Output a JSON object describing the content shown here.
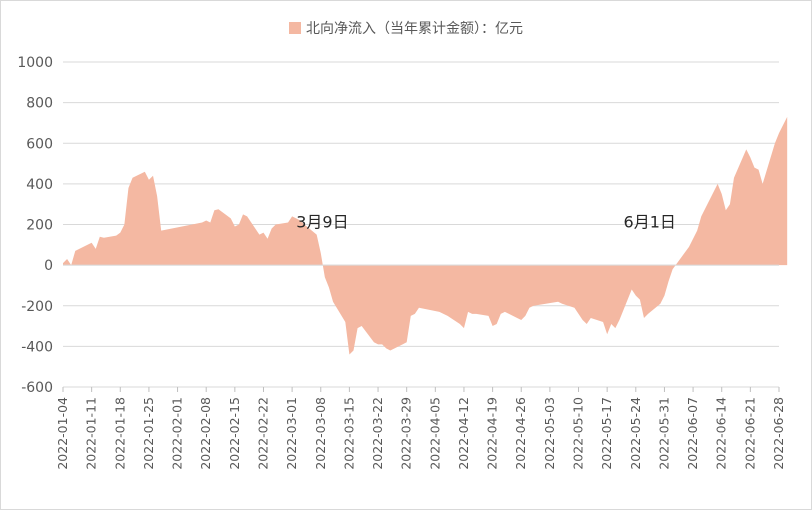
{
  "chart_data": {
    "type": "area",
    "title": "北向净流入（当年累计金额）：亿元",
    "series": [
      {
        "name": "北向净流入（当年累计金额）：亿元",
        "color": "#f4b8a2",
        "points": [
          [
            "2022-01-04",
            10
          ],
          [
            "2022-01-05",
            30
          ],
          [
            "2022-01-06",
            0
          ],
          [
            "2022-01-07",
            70
          ],
          [
            "2022-01-10",
            100
          ],
          [
            "2022-01-11",
            110
          ],
          [
            "2022-01-12",
            80
          ],
          [
            "2022-01-13",
            140
          ],
          [
            "2022-01-14",
            135
          ],
          [
            "2022-01-17",
            145
          ],
          [
            "2022-01-18",
            160
          ],
          [
            "2022-01-19",
            200
          ],
          [
            "2022-01-20",
            380
          ],
          [
            "2022-01-21",
            430
          ],
          [
            "2022-01-24",
            460
          ],
          [
            "2022-01-25",
            420
          ],
          [
            "2022-01-26",
            440
          ],
          [
            "2022-01-27",
            340
          ],
          [
            "2022-01-28",
            170
          ],
          [
            "2022-02-07",
            210
          ],
          [
            "2022-02-08",
            220
          ],
          [
            "2022-02-09",
            210
          ],
          [
            "2022-02-10",
            270
          ],
          [
            "2022-02-11",
            275
          ],
          [
            "2022-02-14",
            230
          ],
          [
            "2022-02-15",
            190
          ],
          [
            "2022-02-16",
            200
          ],
          [
            "2022-02-17",
            250
          ],
          [
            "2022-02-18",
            240
          ],
          [
            "2022-02-21",
            150
          ],
          [
            "2022-02-22",
            160
          ],
          [
            "2022-02-23",
            130
          ],
          [
            "2022-02-24",
            180
          ],
          [
            "2022-02-25",
            200
          ],
          [
            "2022-02-28",
            210
          ],
          [
            "2022-03-01",
            240
          ],
          [
            "2022-03-02",
            230
          ],
          [
            "2022-03-03",
            220
          ],
          [
            "2022-03-04",
            200
          ],
          [
            "2022-03-07",
            150
          ],
          [
            "2022-03-08",
            60
          ],
          [
            "2022-03-09",
            -60
          ],
          [
            "2022-03-10",
            -110
          ],
          [
            "2022-03-11",
            -180
          ],
          [
            "2022-03-14",
            -280
          ],
          [
            "2022-03-15",
            -440
          ],
          [
            "2022-03-16",
            -420
          ],
          [
            "2022-03-17",
            -310
          ],
          [
            "2022-03-18",
            -300
          ],
          [
            "2022-03-21",
            -380
          ],
          [
            "2022-03-22",
            -390
          ],
          [
            "2022-03-23",
            -390
          ],
          [
            "2022-03-24",
            -410
          ],
          [
            "2022-03-25",
            -420
          ],
          [
            "2022-03-28",
            -390
          ],
          [
            "2022-03-29",
            -380
          ],
          [
            "2022-03-30",
            -250
          ],
          [
            "2022-03-31",
            -240
          ],
          [
            "2022-04-01",
            -210
          ],
          [
            "2022-04-06",
            -230
          ],
          [
            "2022-04-07",
            -240
          ],
          [
            "2022-04-08",
            -250
          ],
          [
            "2022-04-11",
            -290
          ],
          [
            "2022-04-12",
            -310
          ],
          [
            "2022-04-13",
            -230
          ],
          [
            "2022-04-14",
            -240
          ],
          [
            "2022-04-15",
            -240
          ],
          [
            "2022-04-18",
            -250
          ],
          [
            "2022-04-19",
            -300
          ],
          [
            "2022-04-20",
            -290
          ],
          [
            "2022-04-21",
            -240
          ],
          [
            "2022-04-22",
            -230
          ],
          [
            "2022-04-25",
            -260
          ],
          [
            "2022-04-26",
            -270
          ],
          [
            "2022-04-27",
            -250
          ],
          [
            "2022-04-28",
            -210
          ],
          [
            "2022-04-29",
            -200
          ],
          [
            "2022-05-05",
            -180
          ],
          [
            "2022-05-06",
            -190
          ],
          [
            "2022-05-09",
            -210
          ],
          [
            "2022-05-10",
            -240
          ],
          [
            "2022-05-11",
            -270
          ],
          [
            "2022-05-12",
            -290
          ],
          [
            "2022-05-13",
            -260
          ],
          [
            "2022-05-16",
            -280
          ],
          [
            "2022-05-17",
            -340
          ],
          [
            "2022-05-18",
            -290
          ],
          [
            "2022-05-19",
            -310
          ],
          [
            "2022-05-20",
            -270
          ],
          [
            "2022-05-23",
            -120
          ],
          [
            "2022-05-24",
            -150
          ],
          [
            "2022-05-25",
            -170
          ],
          [
            "2022-05-26",
            -260
          ],
          [
            "2022-05-27",
            -240
          ],
          [
            "2022-05-30",
            -190
          ],
          [
            "2022-05-31",
            -150
          ],
          [
            "2022-06-01",
            -80
          ],
          [
            "2022-06-02",
            -20
          ],
          [
            "2022-06-06",
            90
          ],
          [
            "2022-06-07",
            130
          ],
          [
            "2022-06-08",
            170
          ],
          [
            "2022-06-09",
            240
          ],
          [
            "2022-06-10",
            280
          ],
          [
            "2022-06-13",
            400
          ],
          [
            "2022-06-14",
            350
          ],
          [
            "2022-06-15",
            270
          ],
          [
            "2022-06-16",
            300
          ],
          [
            "2022-06-17",
            430
          ],
          [
            "2022-06-20",
            570
          ],
          [
            "2022-06-21",
            530
          ],
          [
            "2022-06-22",
            480
          ],
          [
            "2022-06-23",
            470
          ],
          [
            "2022-06-24",
            400
          ],
          [
            "2022-06-27",
            600
          ],
          [
            "2022-06-28",
            650
          ],
          [
            "2022-06-29",
            690
          ],
          [
            "2022-06-30",
            730
          ]
        ]
      }
    ],
    "ylim": [
      -600,
      1000
    ],
    "yticks": [
      "1000",
      "800",
      "600",
      "400",
      "200",
      "0",
      "-200",
      "-400",
      "-600"
    ],
    "xticks": [
      "2022-01-04",
      "2022-01-11",
      "2022-01-18",
      "2022-01-25",
      "2022-02-01",
      "2022-02-08",
      "2022-02-15",
      "2022-02-22",
      "2022-03-01",
      "2022-03-08",
      "2022-03-15",
      "2022-03-22",
      "2022-03-29",
      "2022-04-05",
      "2022-04-12",
      "2022-04-19",
      "2022-04-26",
      "2022-05-03",
      "2022-05-10",
      "2022-05-17",
      "2022-05-24",
      "2022-05-31",
      "2022-06-07",
      "2022-06-14",
      "2022-06-21",
      "2022-06-28"
    ],
    "grid": true,
    "legend": "top-center",
    "annotations": [
      {
        "text": "3月9日",
        "x": "2022-03-02",
        "y": 185
      },
      {
        "text": "6月1日",
        "x": "2022-05-21",
        "y": 185
      }
    ]
  }
}
